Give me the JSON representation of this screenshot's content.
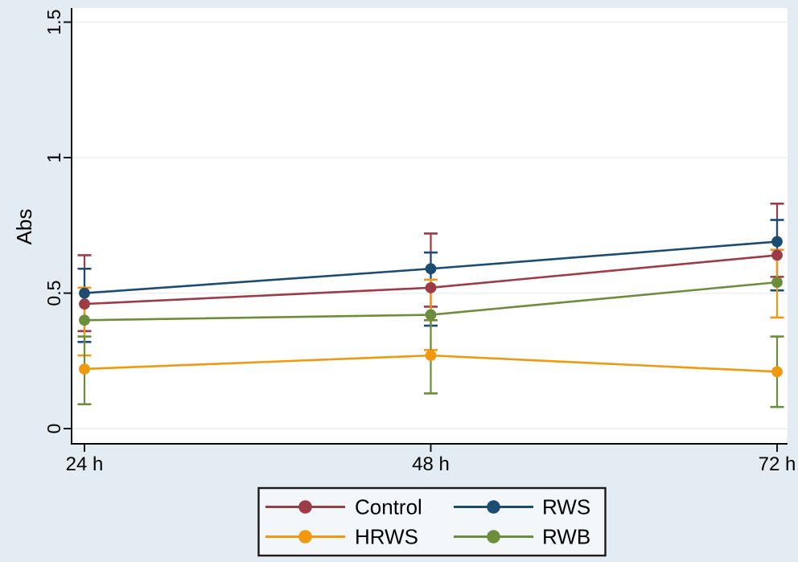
{
  "figure": {
    "background": "#e4ecf3",
    "plot_background": "#ffffff",
    "axis_color": "#0a0a0a",
    "grid_color": "#edf2f5",
    "legend_background": "#f3f7f9",
    "legend_border": "#1a1a1a"
  },
  "chart_data": {
    "type": "line",
    "title": "",
    "xlabel": "",
    "ylabel": "Abs",
    "x_categories": [
      "24 h",
      "48 h",
      "72 h"
    ],
    "y_ticks": [
      0,
      0.5,
      1,
      1.5
    ],
    "y_tick_labels": [
      "0",
      "0.5",
      "1",
      "1.5"
    ],
    "ylim": [
      -0.056,
      1.552
    ],
    "grid": true,
    "legend_position": "bottom",
    "legend_entries": [
      "Control",
      "RWS",
      "HRWS",
      "RWB"
    ],
    "series": [
      {
        "name": "Control",
        "color": "#9d3b46",
        "values": [
          0.46,
          0.52,
          0.64
        ],
        "error_bars": [
          [
            0.36,
            0.64
          ],
          [
            0.45,
            0.72
          ],
          [
            0.56,
            0.83
          ]
        ]
      },
      {
        "name": "RWS",
        "color": "#1d4c72",
        "values": [
          0.5,
          0.59,
          0.69
        ],
        "error_bars": [
          [
            0.32,
            0.59
          ],
          [
            0.38,
            0.65
          ],
          [
            0.51,
            0.77
          ]
        ]
      },
      {
        "name": "HRWS",
        "color": "#f0990f",
        "values": [
          0.22,
          0.27,
          0.21
        ],
        "error_bars": [
          [
            0.27,
            0.52
          ],
          [
            0.29,
            0.55
          ],
          [
            0.41,
            0.66
          ]
        ]
      },
      {
        "name": "RWB",
        "color": "#6c8e3c",
        "values": [
          0.4,
          0.42,
          0.54
        ],
        "error_bars": [
          [
            0.09,
            0.34
          ],
          [
            0.13,
            0.4
          ],
          [
            0.08,
            0.34
          ]
        ]
      }
    ],
    "note": "Whisker colors appear swapped pairwise in the source image: red whiskers center on RWS points, blue on Control, orange on RWB, green on HRWS."
  }
}
